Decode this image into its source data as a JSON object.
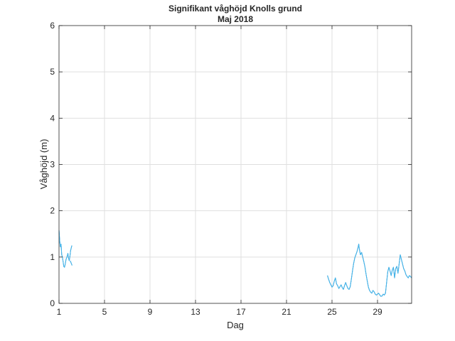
{
  "chart_data": {
    "type": "line",
    "title": "Signifikant våghöjd Knolls grund",
    "subtitle": "Maj 2018",
    "xlabel": "Dag",
    "ylabel": "Våghöjd (m)",
    "xlim": [
      1,
      32
    ],
    "ylim": [
      0,
      6
    ],
    "xticks": [
      "1",
      "5",
      "9",
      "13",
      "17",
      "21",
      "25",
      "29"
    ],
    "xtick_values": [
      1,
      5,
      9,
      13,
      17,
      21,
      25,
      29
    ],
    "yticks": [
      "0",
      "1",
      "2",
      "3",
      "4",
      "5",
      "6"
    ],
    "ytick_values": [
      0,
      1,
      2,
      3,
      4,
      5,
      6
    ],
    "grid": true,
    "colors": {
      "line": "#0072BD",
      "line_overlay": "#4DBEEE",
      "axis": "#262626",
      "grid": "#dfdfdf"
    },
    "series": [
      {
        "segments": [
          [
            [
              1.0,
              1.58
            ],
            [
              1.06,
              1.35
            ],
            [
              1.12,
              1.22
            ],
            [
              1.18,
              1.28
            ],
            [
              1.24,
              1.05
            ],
            [
              1.3,
              1.0
            ],
            [
              1.36,
              0.9
            ],
            [
              1.42,
              0.8
            ],
            [
              1.48,
              0.78
            ],
            [
              1.55,
              0.85
            ],
            [
              1.62,
              0.95
            ],
            [
              1.7,
              1.0
            ],
            [
              1.78,
              1.08
            ],
            [
              1.84,
              0.98
            ],
            [
              1.9,
              0.92
            ],
            [
              1.96,
              1.02
            ],
            [
              2.02,
              1.14
            ],
            [
              2.08,
              1.2
            ],
            [
              2.13,
              1.25
            ]
          ],
          [
            [
              2.0,
              0.92
            ],
            [
              2.05,
              0.88
            ],
            [
              2.1,
              0.85
            ],
            [
              2.15,
              0.82
            ]
          ],
          [
            [
              24.6,
              0.6
            ],
            [
              24.7,
              0.52
            ],
            [
              24.8,
              0.45
            ],
            [
              24.9,
              0.4
            ],
            [
              25.0,
              0.35
            ],
            [
              25.1,
              0.38
            ],
            [
              25.2,
              0.48
            ],
            [
              25.3,
              0.55
            ],
            [
              25.4,
              0.42
            ],
            [
              25.5,
              0.38
            ],
            [
              25.6,
              0.32
            ],
            [
              25.7,
              0.36
            ],
            [
              25.8,
              0.4
            ],
            [
              25.9,
              0.34
            ],
            [
              26.0,
              0.3
            ],
            [
              26.1,
              0.38
            ],
            [
              26.2,
              0.45
            ],
            [
              26.3,
              0.38
            ],
            [
              26.4,
              0.32
            ],
            [
              26.5,
              0.3
            ],
            [
              26.6,
              0.36
            ],
            [
              26.7,
              0.52
            ],
            [
              26.8,
              0.7
            ],
            [
              26.9,
              0.86
            ],
            [
              27.0,
              0.98
            ],
            [
              27.1,
              1.05
            ],
            [
              27.2,
              1.12
            ],
            [
              27.3,
              1.22
            ],
            [
              27.35,
              1.28
            ],
            [
              27.4,
              1.18
            ],
            [
              27.5,
              1.05
            ],
            [
              27.6,
              1.1
            ],
            [
              27.7,
              1.0
            ],
            [
              27.8,
              0.9
            ],
            [
              27.9,
              0.78
            ],
            [
              28.0,
              0.62
            ],
            [
              28.1,
              0.48
            ],
            [
              28.2,
              0.35
            ],
            [
              28.3,
              0.28
            ],
            [
              28.4,
              0.24
            ],
            [
              28.5,
              0.22
            ],
            [
              28.6,
              0.28
            ],
            [
              28.7,
              0.25
            ],
            [
              28.8,
              0.2
            ],
            [
              28.9,
              0.18
            ],
            [
              29.0,
              0.2
            ],
            [
              29.1,
              0.22
            ],
            [
              29.2,
              0.18
            ],
            [
              29.3,
              0.15
            ],
            [
              29.4,
              0.16
            ],
            [
              29.5,
              0.2
            ],
            [
              29.6,
              0.18
            ],
            [
              29.7,
              0.22
            ],
            [
              29.8,
              0.45
            ],
            [
              29.9,
              0.68
            ],
            [
              30.0,
              0.78
            ],
            [
              30.1,
              0.7
            ],
            [
              30.2,
              0.6
            ],
            [
              30.3,
              0.72
            ],
            [
              30.4,
              0.78
            ],
            [
              30.5,
              0.55
            ],
            [
              30.6,
              0.75
            ],
            [
              30.7,
              0.8
            ],
            [
              30.8,
              0.65
            ],
            [
              30.9,
              0.85
            ],
            [
              31.0,
              1.05
            ],
            [
              31.1,
              0.95
            ],
            [
              31.2,
              0.85
            ],
            [
              31.3,
              0.75
            ],
            [
              31.4,
              0.7
            ],
            [
              31.5,
              0.62
            ],
            [
              31.6,
              0.58
            ],
            [
              31.7,
              0.55
            ],
            [
              31.8,
              0.6
            ],
            [
              31.9,
              0.58
            ],
            [
              32.0,
              0.55
            ]
          ]
        ]
      }
    ]
  }
}
